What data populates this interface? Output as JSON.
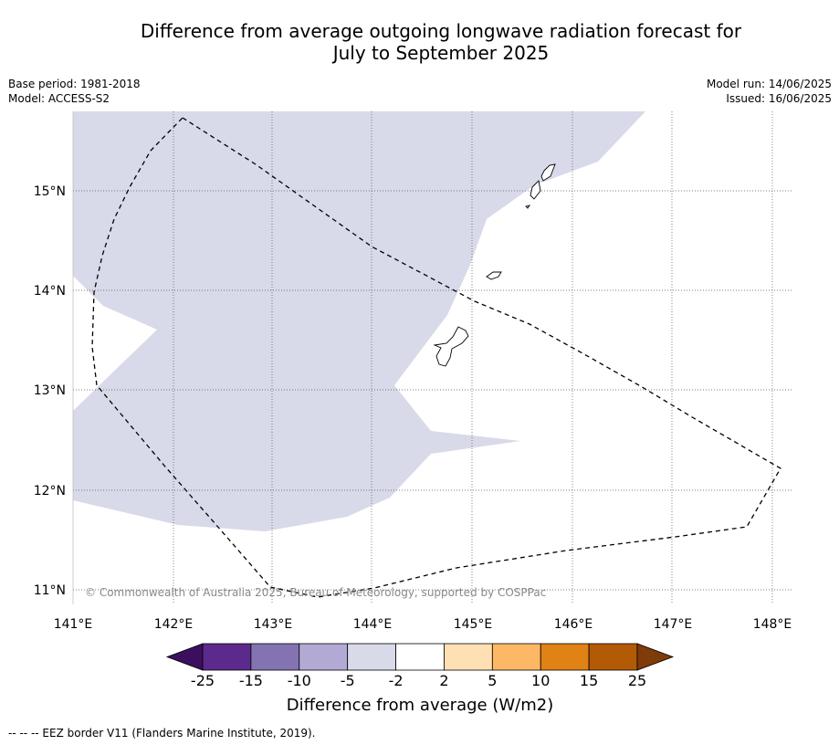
{
  "title_line1": "Difference from average outgoing longwave radiation forecast for",
  "title_line2": "July to September 2025",
  "meta_left": {
    "base_period": "Base period: 1981-2018",
    "model": "Model: ACCESS-S2"
  },
  "meta_right": {
    "model_run": "Model run: 14/06/2025",
    "issued": "Issued: 16/06/2025"
  },
  "map": {
    "lon_ticks": [
      "141°E",
      "142°E",
      "143°E",
      "144°E",
      "145°E",
      "146°E",
      "147°E",
      "148°E"
    ],
    "lat_ticks": [
      "15°N",
      "14°N",
      "13°N",
      "12°N",
      "11°N"
    ],
    "copyright": "© Commonwealth of Australia 2025, Bureau of Meteorology, supported by COSPPac",
    "anomaly_fill_color": "#d8d9e9"
  },
  "colorbar": {
    "label": "Difference from average (W/m2)",
    "tick_labels": [
      "-25",
      "-15",
      "-10",
      "-5",
      "-2",
      "2",
      "5",
      "10",
      "15",
      "25"
    ],
    "colors": [
      "#3b0f5e",
      "#5c2a8c",
      "#8473b1",
      "#b2aad4",
      "#d8d9e9",
      "#ffffff",
      "#fee0b4",
      "#fdb866",
      "#e08215",
      "#b35a07",
      "#7f3b08"
    ]
  },
  "footnote": "--  --  -- EEZ border V11 (Flanders Marine Institute, 2019)."
}
